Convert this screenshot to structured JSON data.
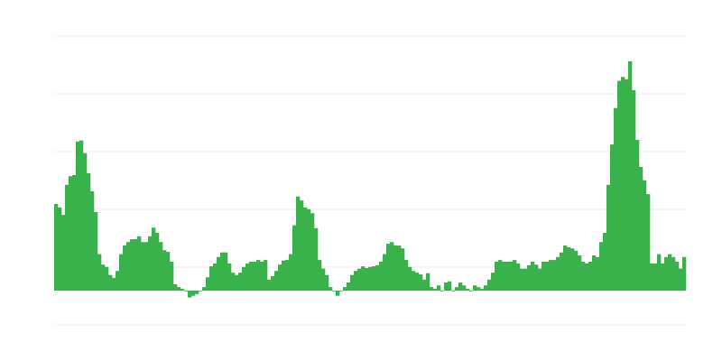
{
  "chart_data": {
    "type": "bar",
    "title": "",
    "xlabel": "",
    "ylabel": "",
    "grid": true,
    "gridlines": [
      -0.594,
      0.406,
      1.406,
      2.406,
      3.406,
      4.406
    ],
    "ylim": [
      -0.594,
      4.406
    ],
    "color": "#39b24b",
    "grid_color": "#eeeeee",
    "values": [
      1.5,
      1.44,
      1.31,
      1.83,
      1.98,
      2.0,
      2.58,
      2.6,
      2.38,
      2.03,
      1.72,
      1.36,
      0.63,
      0.45,
      0.41,
      0.27,
      0.22,
      0.34,
      0.63,
      0.78,
      0.84,
      0.89,
      0.89,
      0.94,
      0.84,
      0.84,
      0.94,
      1.09,
      1.0,
      0.84,
      0.7,
      0.67,
      0.5,
      0.11,
      0.06,
      0.03,
      0,
      -0.12,
      -0.09,
      -0.06,
      0,
      0.06,
      0.23,
      0.42,
      0.47,
      0.58,
      0.66,
      0.66,
      0.47,
      0.31,
      0.27,
      0.31,
      0.41,
      0.47,
      0.5,
      0.5,
      0.53,
      0.5,
      0.53,
      0.19,
      0.25,
      0.34,
      0.45,
      0.52,
      0.53,
      0.63,
      1.13,
      1.63,
      1.56,
      1.44,
      1.41,
      1.34,
      1.08,
      0.53,
      0.38,
      0.27,
      0.06,
      0,
      -0.09,
      0,
      0.06,
      0.14,
      0.27,
      0.34,
      0.38,
      0.42,
      0.39,
      0.41,
      0.42,
      0.44,
      0.5,
      0.63,
      0.81,
      0.84,
      0.78,
      0.78,
      0.73,
      0.53,
      0.41,
      0.34,
      0.31,
      0.28,
      0.19,
      0.3,
      0.06,
      0.03,
      0.09,
      0,
      0.14,
      0.16,
      0,
      0.06,
      0.14,
      0.09,
      0.03,
      0,
      0.09,
      0.06,
      0.03,
      0.09,
      0.19,
      0.31,
      0.5,
      0.53,
      0.5,
      0.5,
      0.5,
      0.53,
      0.47,
      0.38,
      0.38,
      0.44,
      0.5,
      0.45,
      0.38,
      0.5,
      0.5,
      0.53,
      0.53,
      0.58,
      0.66,
      0.78,
      0.75,
      0.73,
      0.69,
      0.61,
      0.5,
      0.47,
      0.5,
      0.61,
      0.58,
      0.84,
      1.0,
      1.83,
      2.53,
      3.16,
      3.63,
      3.7,
      3.66,
      3.97,
      3.47,
      2.61,
      2.14,
      1.91,
      1.67,
      0.47,
      0.47,
      0.63,
      0.47,
      0.58,
      0.63,
      0.58,
      0.5,
      0.38,
      0.58
    ]
  }
}
